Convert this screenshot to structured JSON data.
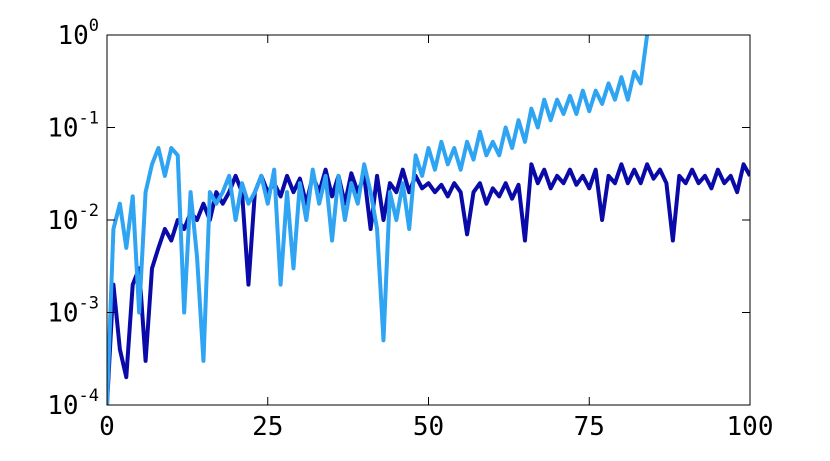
{
  "chart_data": {
    "type": "line",
    "x": [
      0,
      1,
      2,
      3,
      4,
      5,
      6,
      7,
      8,
      9,
      10,
      11,
      12,
      13,
      14,
      15,
      16,
      17,
      18,
      19,
      20,
      21,
      22,
      23,
      24,
      25,
      26,
      27,
      28,
      29,
      30,
      31,
      32,
      33,
      34,
      35,
      36,
      37,
      38,
      39,
      40,
      41,
      42,
      43,
      44,
      45,
      46,
      47,
      48,
      49,
      50,
      51,
      52,
      53,
      54,
      55,
      56,
      57,
      58,
      59,
      60,
      61,
      62,
      63,
      64,
      65,
      66,
      67,
      68,
      69,
      70,
      71,
      72,
      73,
      74,
      75,
      76,
      77,
      78,
      79,
      80,
      81,
      82,
      83,
      84,
      85,
      86,
      87,
      88,
      89,
      90,
      91,
      92,
      93,
      94,
      95,
      96,
      97,
      98,
      99,
      100
    ],
    "series": [
      {
        "color": "#0a0aa8",
        "values": [
          0.0001,
          0.002,
          0.0004,
          0.0002,
          0.002,
          0.003,
          0.0003,
          0.003,
          0.005,
          0.008,
          0.006,
          0.01,
          0.008,
          0.012,
          0.01,
          0.015,
          0.01,
          0.02,
          0.015,
          0.02,
          0.03,
          0.02,
          0.002,
          0.02,
          0.03,
          0.02,
          0.025,
          0.018,
          0.03,
          0.02,
          0.028,
          0.015,
          0.03,
          0.02,
          0.035,
          0.018,
          0.03,
          0.015,
          0.032,
          0.02,
          0.03,
          0.008,
          0.03,
          0.01,
          0.025,
          0.02,
          0.035,
          0.02,
          0.03,
          0.022,
          0.025,
          0.02,
          0.024,
          0.018,
          0.025,
          0.02,
          0.007,
          0.02,
          0.025,
          0.015,
          0.022,
          0.018,
          0.025,
          0.017,
          0.024,
          0.006,
          0.04,
          0.025,
          0.035,
          0.022,
          0.03,
          0.025,
          0.035,
          0.024,
          0.03,
          0.022,
          0.035,
          0.01,
          0.03,
          0.025,
          0.04,
          0.025,
          0.035,
          0.025,
          0.04,
          0.028,
          0.035,
          0.025,
          0.006,
          0.03,
          0.025,
          0.035,
          0.025,
          0.03,
          0.022,
          0.035,
          0.025,
          0.03,
          0.02,
          0.04,
          0.03
        ]
      },
      {
        "color": "#2fa4f2",
        "values": [
          0.0001,
          0.008,
          0.015,
          0.005,
          0.018,
          0.001,
          0.02,
          0.04,
          0.06,
          0.03,
          0.06,
          0.05,
          0.001,
          0.02,
          0.004,
          0.0003,
          0.02,
          0.015,
          0.02,
          0.03,
          0.01,
          0.025,
          0.015,
          0.02,
          0.03,
          0.015,
          0.035,
          0.002,
          0.02,
          0.003,
          0.025,
          0.01,
          0.035,
          0.015,
          0.03,
          0.006,
          0.03,
          0.01,
          0.025,
          0.015,
          0.04,
          0.02,
          0.008,
          0.0005,
          0.02,
          0.01,
          0.025,
          0.008,
          0.05,
          0.03,
          0.06,
          0.035,
          0.07,
          0.04,
          0.06,
          0.035,
          0.07,
          0.045,
          0.09,
          0.05,
          0.07,
          0.05,
          0.1,
          0.06,
          0.12,
          0.07,
          0.16,
          0.1,
          0.2,
          0.12,
          0.2,
          0.14,
          0.22,
          0.14,
          0.25,
          0.15,
          0.25,
          0.18,
          0.3,
          0.2,
          0.35,
          0.2,
          0.4,
          0.3,
          1,
          null,
          null,
          null,
          null,
          null,
          null,
          null,
          null,
          null,
          null,
          null,
          null,
          null,
          null,
          null,
          null
        ]
      }
    ],
    "xlim": [
      0,
      100
    ],
    "xticks": [
      0,
      25,
      50,
      75,
      100
    ],
    "ylim": [
      0.0001,
      1
    ],
    "ylog": true,
    "yticks": [
      {
        "value": 0.0001,
        "label": "10^-4"
      },
      {
        "value": 0.001,
        "label": "10^-3"
      },
      {
        "value": 0.01,
        "label": "10^-2"
      },
      {
        "value": 0.1,
        "label": "10^-1"
      },
      {
        "value": 1,
        "label": "10^0"
      }
    ]
  }
}
